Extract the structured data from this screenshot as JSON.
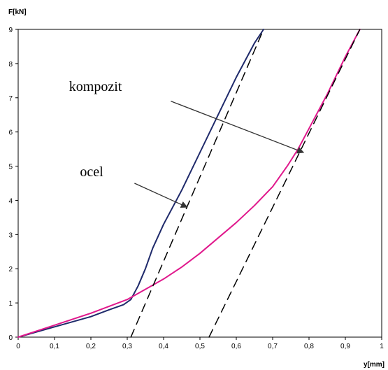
{
  "chart_data": {
    "type": "line",
    "xlabel": "y[mm]",
    "ylabel": "F[kN]",
    "xlim": [
      0,
      1
    ],
    "ylim": [
      0,
      9
    ],
    "x_ticks": [
      0,
      0.1,
      0.2,
      0.3,
      0.4,
      0.5,
      0.6,
      0.7,
      0.8,
      0.9,
      1
    ],
    "x_tick_labels": [
      "0",
      "0,1",
      "0,2",
      "0,3",
      "0,4",
      "0,5",
      "0,6",
      "0,7",
      "0,8",
      "0,9",
      "1"
    ],
    "y_ticks": [
      0,
      1,
      2,
      3,
      4,
      5,
      6,
      7,
      8,
      9
    ],
    "y_tick_labels": [
      "0",
      "1",
      "2",
      "3",
      "4",
      "5",
      "6",
      "7",
      "8",
      "9"
    ],
    "grid": false,
    "series": [
      {
        "color": "#1f2a6b",
        "x": [
          0,
          0.1,
          0.2,
          0.25,
          0.29,
          0.31,
          0.33,
          0.35,
          0.37,
          0.4,
          0.45,
          0.5,
          0.55,
          0.6,
          0.65,
          0.675
        ],
        "y": [
          0,
          0.3,
          0.6,
          0.8,
          0.95,
          1.1,
          1.5,
          2.0,
          2.6,
          3.3,
          4.3,
          5.4,
          6.5,
          7.6,
          8.6,
          9.0
        ]
      },
      {
        "color": "#e0188c",
        "x": [
          0,
          0.1,
          0.2,
          0.3,
          0.35,
          0.4,
          0.45,
          0.5,
          0.55,
          0.6,
          0.65,
          0.7,
          0.74,
          0.77,
          0.8,
          0.85,
          0.9,
          0.94
        ],
        "y": [
          0,
          0.35,
          0.7,
          1.1,
          1.4,
          1.7,
          2.05,
          2.45,
          2.9,
          3.35,
          3.85,
          4.4,
          5.0,
          5.5,
          6.1,
          7.1,
          8.2,
          9.0
        ]
      },
      {
        "color": "#000000",
        "dashed": true,
        "x": [
          0.31,
          0.675
        ],
        "y": [
          0,
          9.0
        ]
      },
      {
        "color": "#000000",
        "dashed": true,
        "x": [
          0.525,
          0.94
        ],
        "y": [
          0,
          9.0
        ]
      }
    ],
    "annotations": [
      {
        "text": "kompozit",
        "x": 0.14,
        "y": 7.2,
        "arrow_from": [
          0.42,
          6.9
        ],
        "arrow_to": [
          0.785,
          5.4
        ]
      },
      {
        "text": "ocel",
        "x": 0.17,
        "y": 4.7,
        "arrow_from": [
          0.32,
          4.5
        ],
        "arrow_to": [
          0.465,
          3.8
        ]
      }
    ]
  }
}
